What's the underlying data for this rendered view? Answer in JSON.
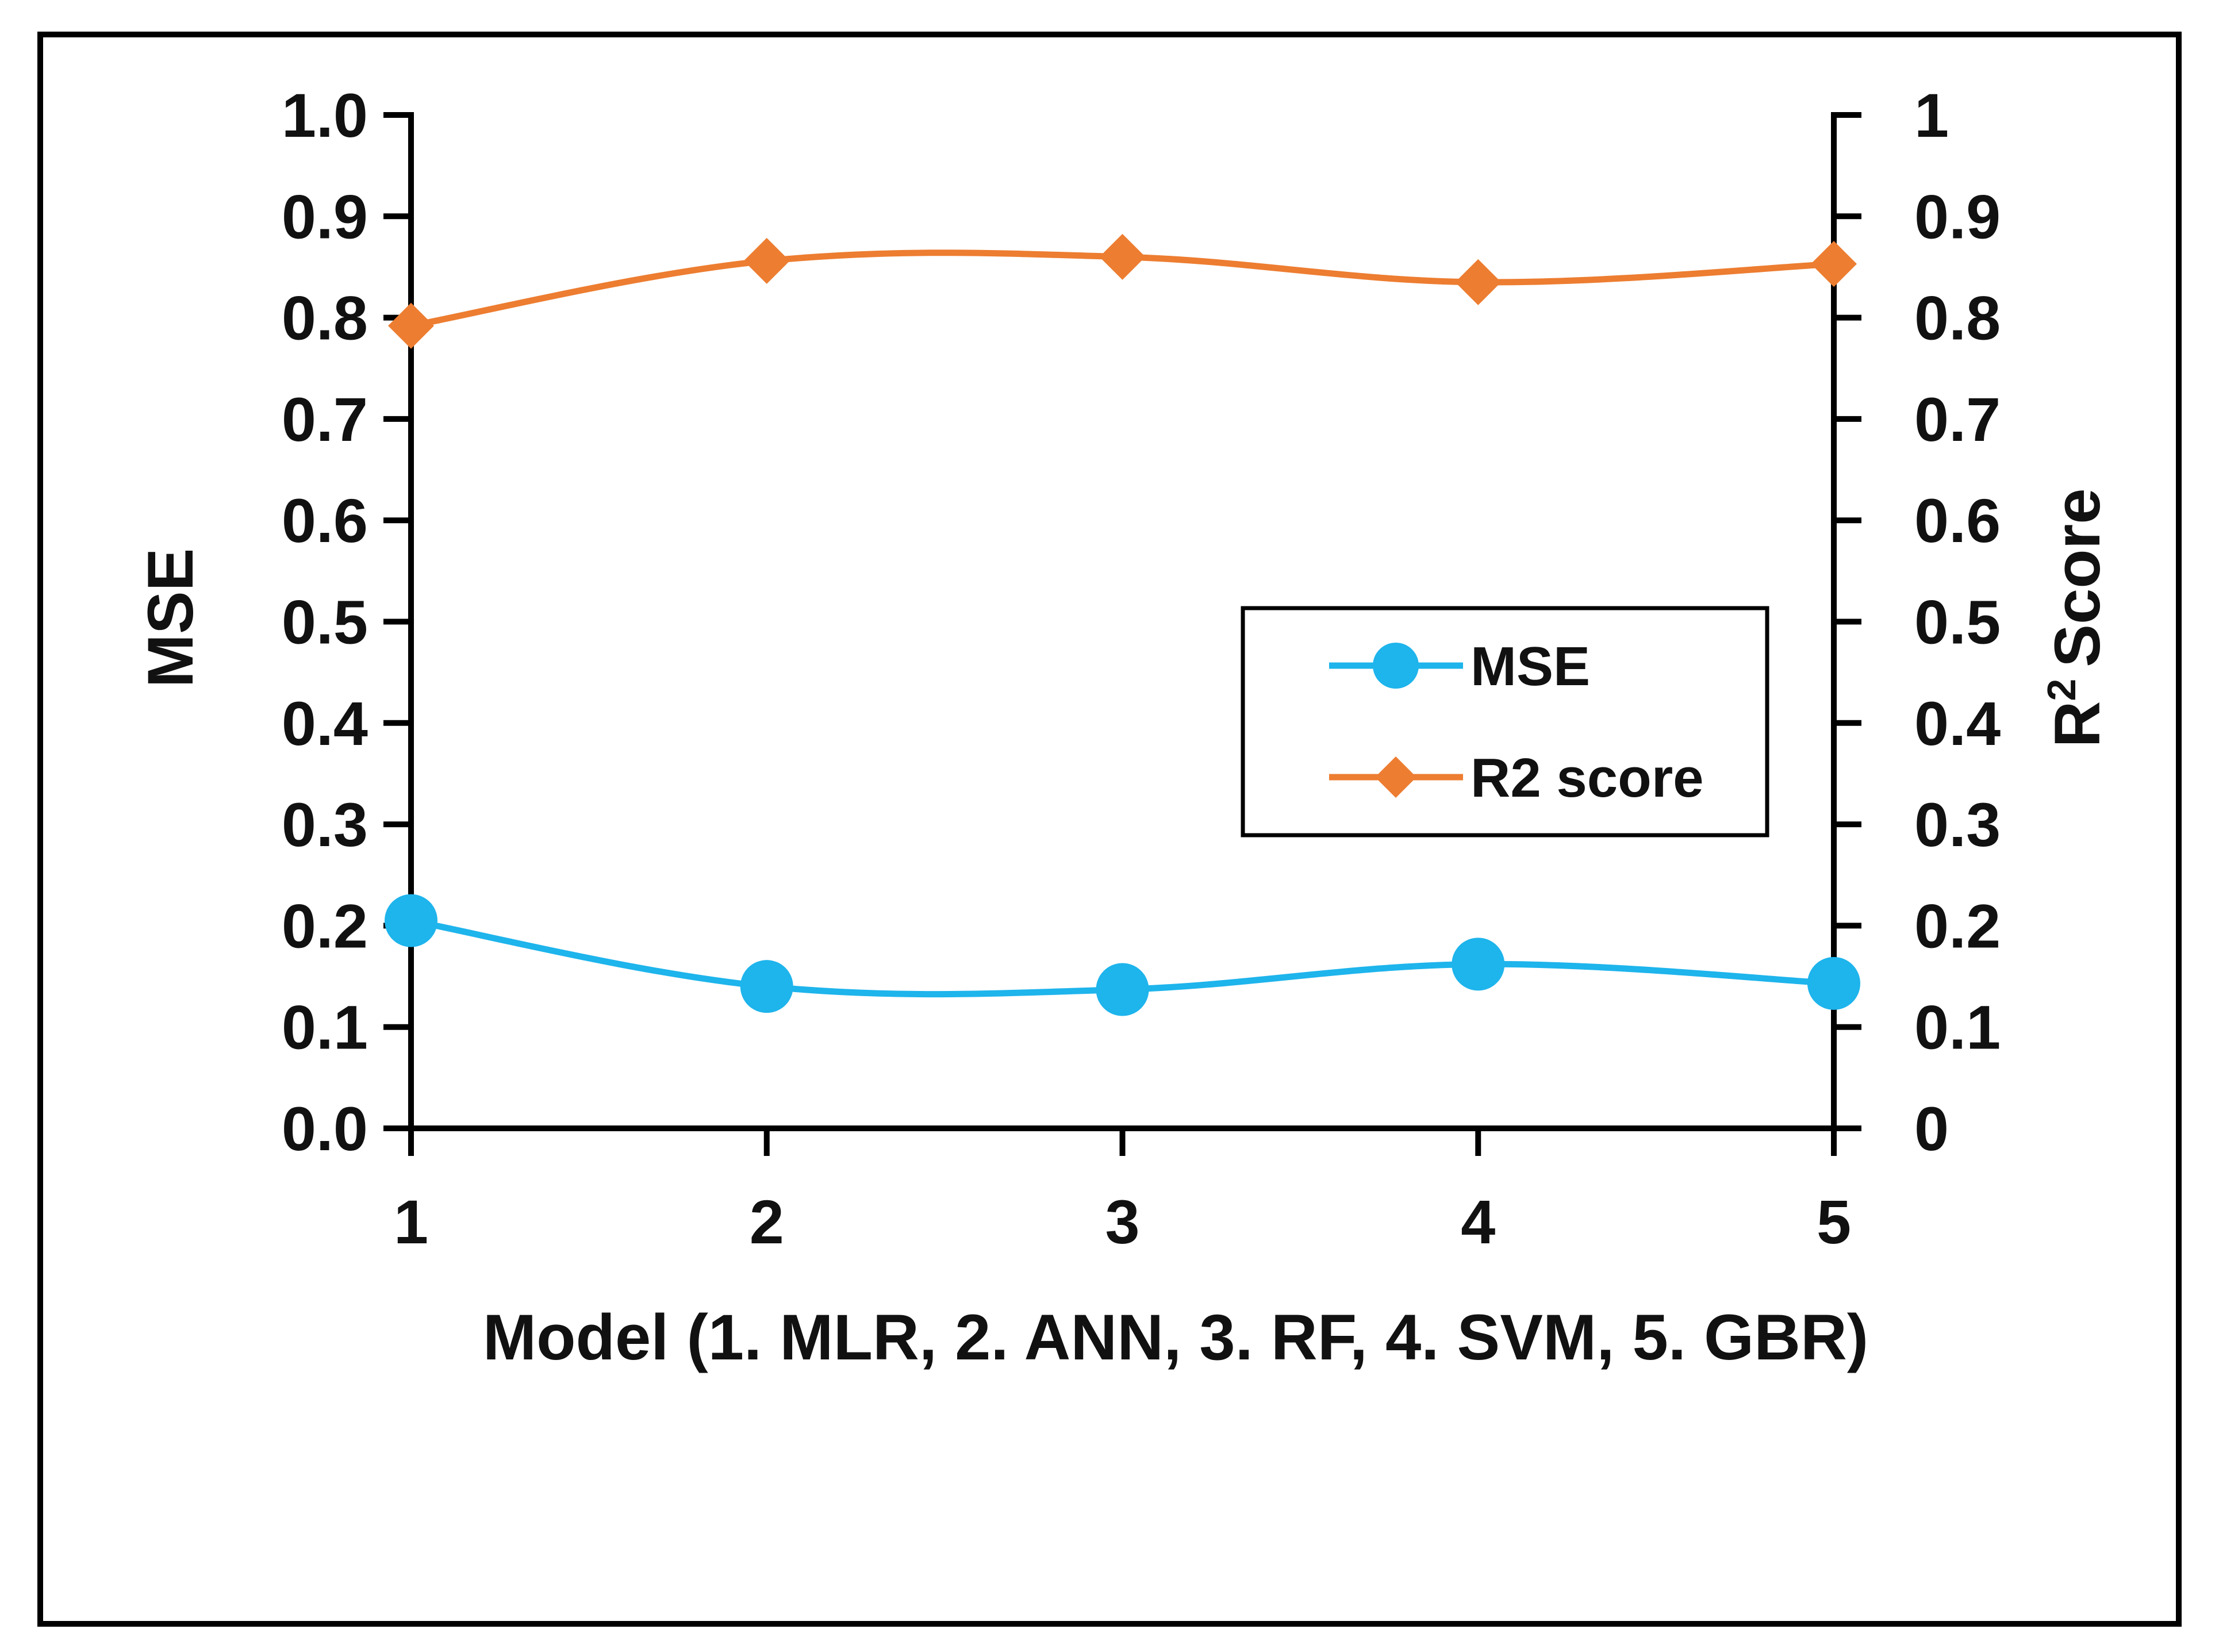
{
  "chart_data": {
    "type": "line",
    "title": "",
    "xlabel": "Model (1. MLR, 2. ANN, 3. RF, 4. SVM, 5. GBR)",
    "ylabel": "MSE",
    "y2label": "Score",
    "y2label_prefix": "R",
    "y2label_superscript": "2",
    "x": [
      1,
      2,
      3,
      4,
      5
    ],
    "x_tick_labels": [
      "1",
      "2",
      "3",
      "4",
      "5"
    ],
    "xlim": [
      1,
      5
    ],
    "ylim": [
      0,
      1
    ],
    "y2lim": [
      0,
      1
    ],
    "y_tick_labels": [
      "0.0",
      "0.1",
      "0.2",
      "0.3",
      "0.4",
      "0.5",
      "0.6",
      "0.7",
      "0.8",
      "0.9",
      "1.0"
    ],
    "y2_tick_labels": [
      "0",
      "0.1",
      "0.2",
      "0.3",
      "0.4",
      "0.5",
      "0.6",
      "0.7",
      "0.8",
      "0.9",
      "1"
    ],
    "grid": false,
    "legend_position": "center-right",
    "series": [
      {
        "name": "MSE",
        "axis": "left",
        "marker": "circle",
        "color": "#1EB4EC",
        "values": [
          0.205,
          0.14,
          0.137,
          0.162,
          0.143
        ]
      },
      {
        "name": "R2 score",
        "axis": "right",
        "marker": "diamond",
        "color": "#ED7D31",
        "values": [
          0.792,
          0.856,
          0.86,
          0.835,
          0.853
        ]
      }
    ]
  }
}
